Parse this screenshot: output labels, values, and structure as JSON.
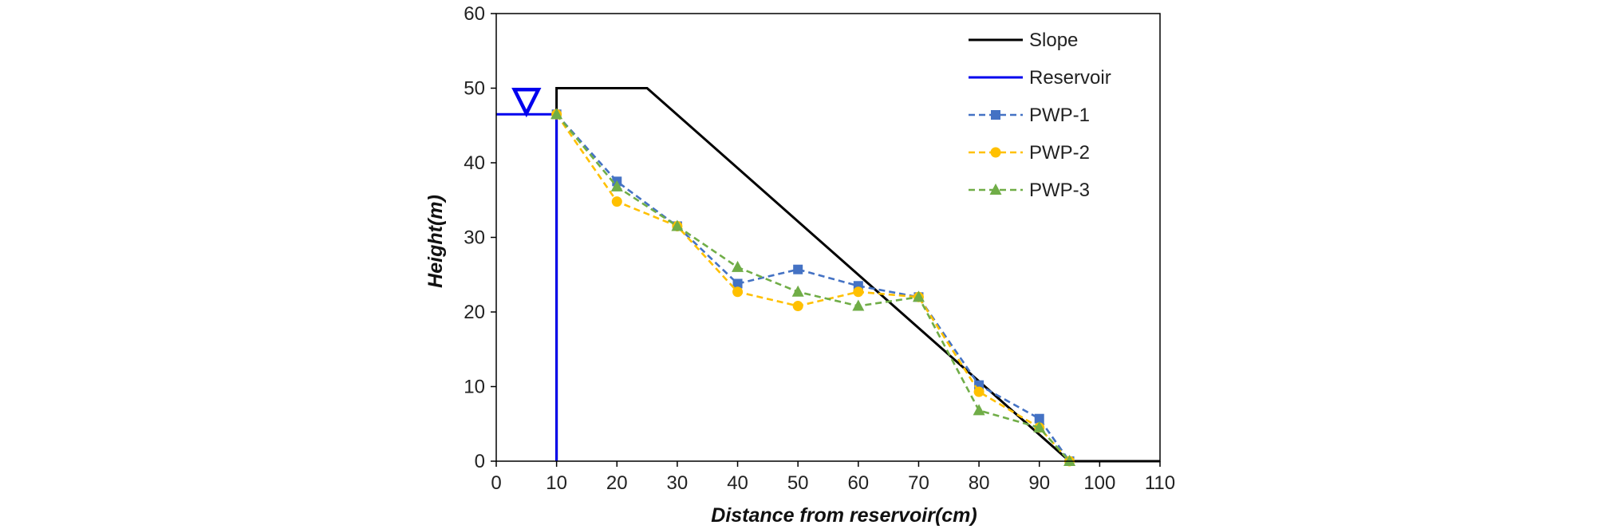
{
  "chart_data": {
    "type": "line",
    "xlabel": "Distance from reservoir(cm)",
    "ylabel": "Height(m)",
    "xlim": [
      0,
      110
    ],
    "ylim": [
      0,
      60
    ],
    "x_ticks": [
      "0",
      "10",
      "20",
      "30",
      "40",
      "50",
      "60",
      "70",
      "80",
      "90",
      "100",
      "110"
    ],
    "y_ticks": [
      "0",
      "10",
      "20",
      "30",
      "40",
      "50",
      "60"
    ],
    "grid": false,
    "legend_position": "top-right",
    "series": [
      {
        "name": "Slope",
        "style": "solid",
        "marker": "none",
        "color": "#000000",
        "x": [
          10,
          10,
          25,
          95,
          110
        ],
        "y": [
          0,
          50,
          50,
          0,
          0
        ]
      },
      {
        "name": "Reservoir",
        "style": "solid",
        "marker": "none",
        "color": "#0000ee",
        "x": [
          0,
          10,
          10
        ],
        "y": [
          46.5,
          46.5,
          0
        ]
      },
      {
        "name": "PWP-1",
        "style": "dashed",
        "marker": "square",
        "color": "#4472c4",
        "x": [
          10,
          20,
          30,
          40,
          50,
          60,
          70,
          80,
          90,
          95
        ],
        "y": [
          46.5,
          37.5,
          31.5,
          23.8,
          25.7,
          23.5,
          22,
          10.2,
          5.7,
          0
        ]
      },
      {
        "name": "PWP-2",
        "style": "dashed",
        "marker": "circle",
        "color": "#ffc000",
        "x": [
          10,
          20,
          30,
          40,
          50,
          60,
          70,
          80,
          90,
          95
        ],
        "y": [
          46.5,
          34.8,
          31.5,
          22.7,
          20.8,
          22.7,
          22,
          9.3,
          4.5,
          0
        ]
      },
      {
        "name": "PWP-3",
        "style": "dashed",
        "marker": "triangle",
        "color": "#70ad47",
        "x": [
          10,
          20,
          30,
          40,
          50,
          60,
          70,
          80,
          90,
          95
        ],
        "y": [
          46.5,
          36.8,
          31.5,
          26,
          22.7,
          20.8,
          22,
          6.8,
          4.5,
          0
        ]
      }
    ],
    "annotations": [
      {
        "type": "water-level-symbol",
        "x": 5,
        "y": 46.5,
        "color": "#0000ee"
      }
    ]
  }
}
